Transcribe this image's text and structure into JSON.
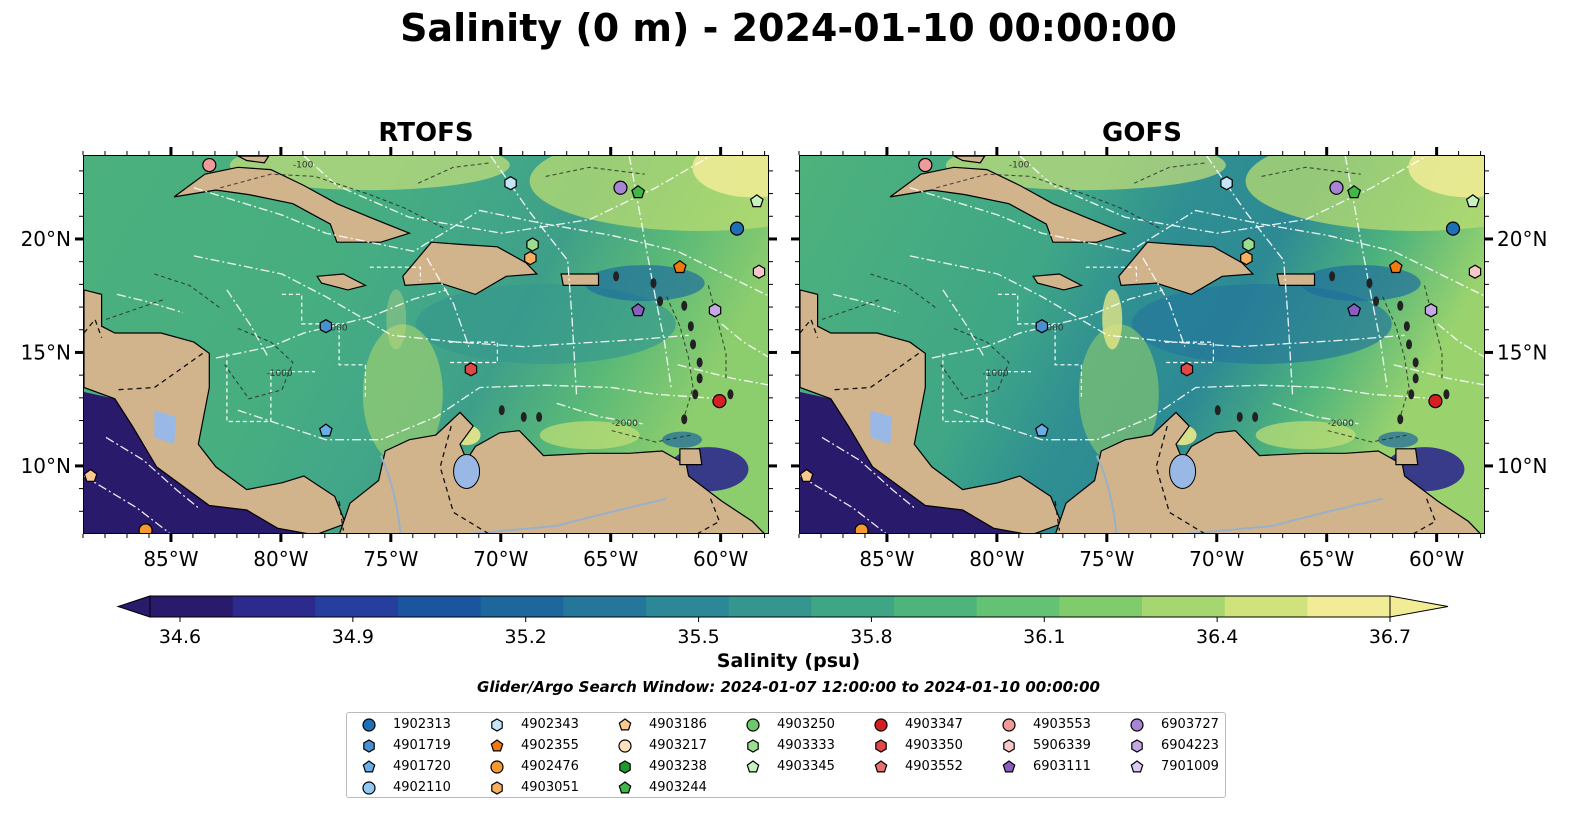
{
  "title": "Salinity (0 m) - 2024-01-10 00:00:00",
  "panels": [
    {
      "title": "RTOFS"
    },
    {
      "title": "GOFS"
    }
  ],
  "map": {
    "lon_ticks": [
      "85°W",
      "80°W",
      "75°W",
      "70°W",
      "65°W",
      "60°W"
    ],
    "lat_ticks": [
      "20°N",
      "15°N",
      "10°N"
    ],
    "contour_labels": [
      "-100",
      "-1000",
      "-2000"
    ]
  },
  "colorbar": {
    "label": "Salinity (psu)",
    "ticks": [
      "34.6",
      "34.9",
      "35.2",
      "35.5",
      "35.8",
      "36.1",
      "36.4",
      "36.7"
    ],
    "range": [
      34.6,
      36.7
    ],
    "colors": [
      "#2a1a6b",
      "#2c2a8c",
      "#263f9f",
      "#1b55a0",
      "#1d679c",
      "#24779a",
      "#2c8796",
      "#34968f",
      "#3ea685",
      "#4db57b",
      "#63c274",
      "#80cc6d",
      "#a5d66f",
      "#cfe27b",
      "#f2ec96"
    ],
    "extend": "both"
  },
  "search_window": "Glider/Argo Search Window: 2024-01-07 12:00:00 to 2024-01-10 00:00:00",
  "legend": [
    {
      "id": "1902313",
      "color": "#1f6fb5",
      "marker": "circle"
    },
    {
      "id": "4901719",
      "color": "#4a90d0",
      "marker": "hexagon"
    },
    {
      "id": "4901720",
      "color": "#6aaee8",
      "marker": "pentagon"
    },
    {
      "id": "4902110",
      "color": "#93c8f0",
      "marker": "circle"
    },
    {
      "id": "4902343",
      "color": "#c4e4f8",
      "marker": "hexagon"
    },
    {
      "id": "4902355",
      "color": "#f07a10",
      "marker": "pentagon"
    },
    {
      "id": "4902476",
      "color": "#f59a30",
      "marker": "circle"
    },
    {
      "id": "4903051",
      "color": "#f8b060",
      "marker": "hexagon"
    },
    {
      "id": "4903186",
      "color": "#fbc890",
      "marker": "pentagon"
    },
    {
      "id": "4903217",
      "color": "#fde0c0",
      "marker": "circle"
    },
    {
      "id": "4903238",
      "color": "#1f9a2a",
      "marker": "hexagon"
    },
    {
      "id": "4903244",
      "color": "#40b848",
      "marker": "pentagon"
    },
    {
      "id": "4903250",
      "color": "#6cc86a",
      "marker": "circle"
    },
    {
      "id": "4903333",
      "color": "#9ade90",
      "marker": "hexagon"
    },
    {
      "id": "4903345",
      "color": "#c8f2c0",
      "marker": "pentagon"
    },
    {
      "id": "4903347",
      "color": "#d42020",
      "marker": "circle"
    },
    {
      "id": "4903350",
      "color": "#e04848",
      "marker": "hexagon"
    },
    {
      "id": "4903552",
      "color": "#e87070",
      "marker": "pentagon"
    },
    {
      "id": "4903553",
      "color": "#f09a9a",
      "marker": "circle"
    },
    {
      "id": "5906339",
      "color": "#f8c8c8",
      "marker": "hexagon"
    },
    {
      "id": "6903111",
      "color": "#8a5ec0",
      "marker": "pentagon"
    },
    {
      "id": "6903727",
      "color": "#a884d4",
      "marker": "circle"
    },
    {
      "id": "6904223",
      "color": "#c4a8e4",
      "marker": "hexagon"
    },
    {
      "id": "7901009",
      "color": "#dcc8f2",
      "marker": "pentagon"
    }
  ],
  "floats_on_map": [
    {
      "lon": -83.3,
      "lat": 23.3,
      "ref": "4903553"
    },
    {
      "lon": -69.6,
      "lat": 22.5,
      "ref": "4902343"
    },
    {
      "lon": -64.6,
      "lat": 22.3,
      "ref": "6903727"
    },
    {
      "lon": -63.8,
      "lat": 22.1,
      "ref": "4903244"
    },
    {
      "lon": -58.4,
      "lat": 21.7,
      "ref": "4903345"
    },
    {
      "lon": -59.3,
      "lat": 20.5,
      "ref": "1902313"
    },
    {
      "lon": -68.6,
      "lat": 19.8,
      "ref": "4903333"
    },
    {
      "lon": -68.7,
      "lat": 19.2,
      "ref": "4903051"
    },
    {
      "lon": -61.9,
      "lat": 18.8,
      "ref": "4902355"
    },
    {
      "lon": -58.3,
      "lat": 18.6,
      "ref": "5906339"
    },
    {
      "lon": -78.0,
      "lat": 16.2,
      "ref": "4901719"
    },
    {
      "lon": -63.8,
      "lat": 16.9,
      "ref": "6903111"
    },
    {
      "lon": -60.3,
      "lat": 16.9,
      "ref": "6904223"
    },
    {
      "lon": -71.4,
      "lat": 14.3,
      "ref": "4903350"
    },
    {
      "lon": -60.1,
      "lat": 12.9,
      "ref": "4903347"
    },
    {
      "lon": -78.0,
      "lat": 11.6,
      "ref": "4901720"
    },
    {
      "lon": -88.7,
      "lat": 9.6,
      "ref": "4903186"
    },
    {
      "lon": -86.2,
      "lat": 7.2,
      "ref": "4902476"
    }
  ]
}
